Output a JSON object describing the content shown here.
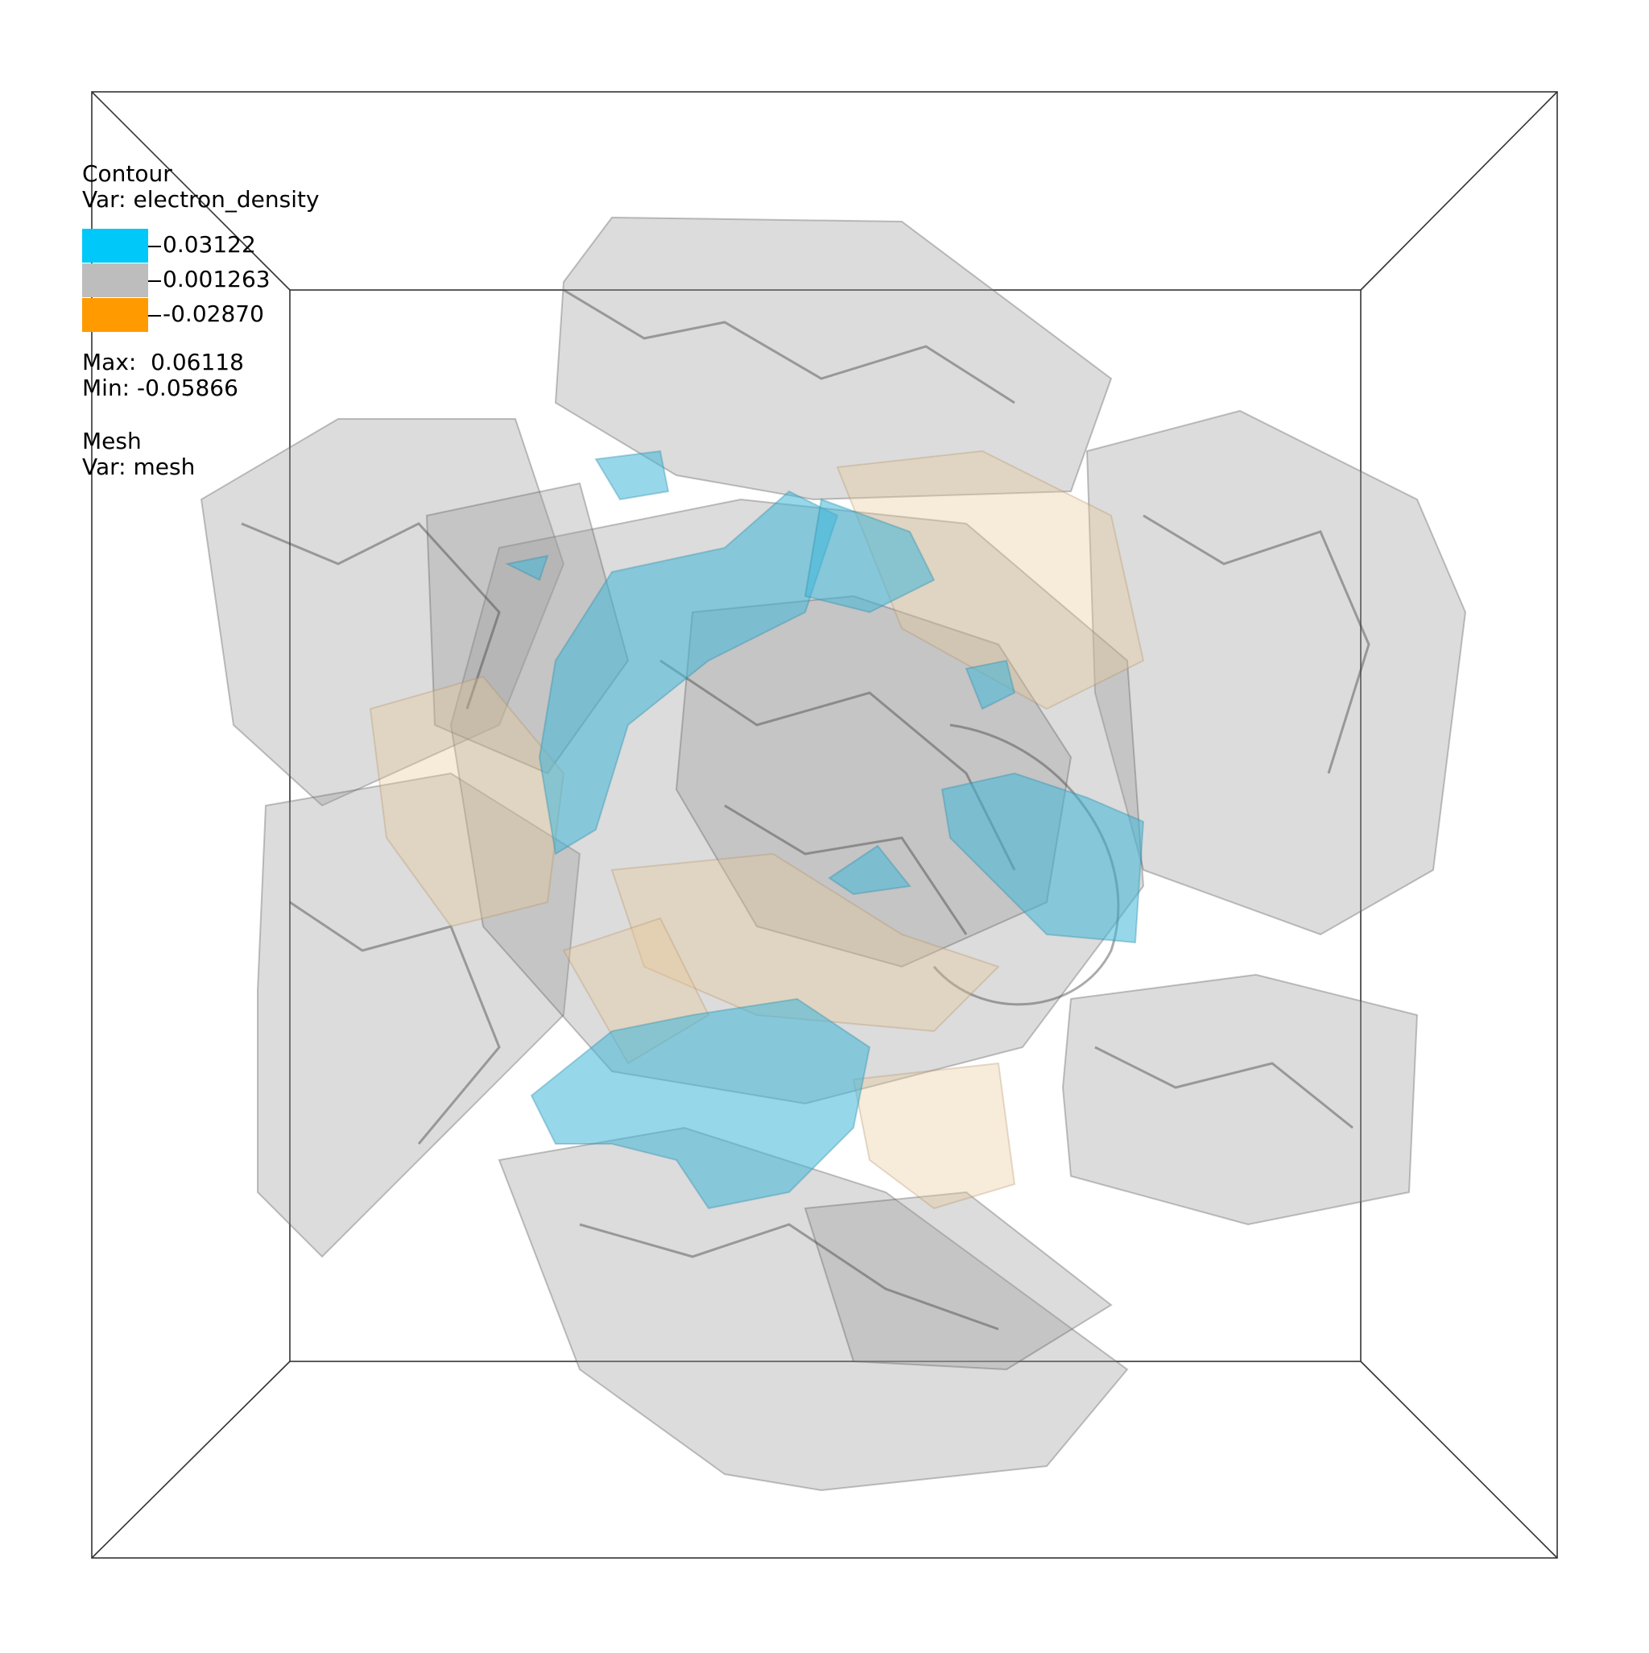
{
  "legend": {
    "contour_title": "Contour",
    "contour_var": "Var: electron_density",
    "levels": [
      {
        "value": "0.03122",
        "color": "#00c8f8"
      },
      {
        "value": "0.001263",
        "color": "#bdbdbd"
      },
      {
        "value": "-0.02870",
        "color": "#ff9a00"
      }
    ],
    "max": "Max:  0.06118",
    "min": "Min: -0.05866",
    "mesh_title": "Mesh",
    "mesh_var": "Var: mesh"
  },
  "colors": {
    "gray_surface": "#9a9a9a",
    "blue_surface": "#3fb7d8",
    "orange_surface": "#e9c896",
    "box_lines": "#333333"
  }
}
